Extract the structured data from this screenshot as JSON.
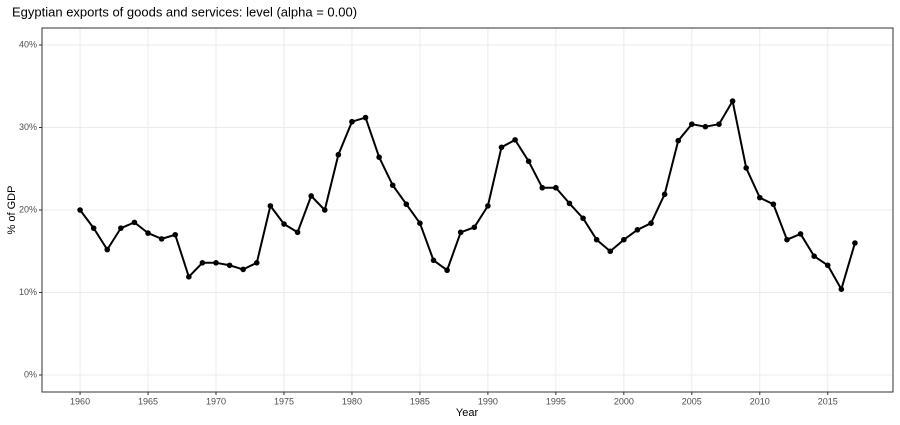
{
  "chart_data": {
    "type": "line",
    "title": "Egyptian exports of goods and services: level (alpha = 0.00)",
    "x_label": "Year",
    "y_label": "% of GDP",
    "x": [
      1960,
      1961,
      1962,
      1963,
      1964,
      1965,
      1966,
      1967,
      1968,
      1969,
      1970,
      1971,
      1972,
      1973,
      1974,
      1975,
      1976,
      1977,
      1978,
      1979,
      1980,
      1981,
      1982,
      1983,
      1984,
      1985,
      1986,
      1987,
      1988,
      1989,
      1990,
      1991,
      1992,
      1993,
      1994,
      1995,
      1996,
      1997,
      1998,
      1999,
      2000,
      2001,
      2002,
      2003,
      2004,
      2005,
      2006,
      2007,
      2008,
      2009,
      2010,
      2011,
      2012,
      2013,
      2014,
      2015,
      2016,
      2017
    ],
    "values": [
      20.0,
      17.8,
      15.2,
      17.8,
      18.5,
      17.2,
      16.5,
      17.0,
      11.9,
      13.6,
      13.6,
      13.3,
      12.8,
      13.6,
      20.5,
      18.3,
      17.3,
      21.7,
      20.0,
      26.7,
      30.7,
      31.2,
      26.4,
      23.0,
      20.7,
      18.4,
      13.9,
      12.7,
      17.3,
      17.9,
      20.5,
      27.6,
      28.5,
      25.9,
      22.7,
      22.7,
      20.8,
      19.0,
      16.4,
      15.0,
      16.4,
      17.6,
      18.4,
      21.9,
      28.4,
      30.4,
      30.1,
      30.4,
      33.2,
      25.1,
      21.5,
      20.7,
      16.4,
      17.1,
      14.4,
      13.3,
      10.4,
      16.0
    ],
    "color": "#000000",
    "xlim": [
      1957.2,
      2019.8
    ],
    "ylim": [
      -2.06,
      42.06
    ],
    "xticks": [
      1960,
      1965,
      1970,
      1975,
      1980,
      1985,
      1990,
      1995,
      2000,
      2005,
      2010,
      2015
    ],
    "yticks": [
      {
        "value": 0,
        "label": "0%"
      },
      {
        "value": 10,
        "label": "10%"
      },
      {
        "value": 20,
        "label": "20%"
      },
      {
        "value": 30,
        "label": "30%"
      },
      {
        "value": 40,
        "label": "40%"
      }
    ],
    "grid": true
  }
}
